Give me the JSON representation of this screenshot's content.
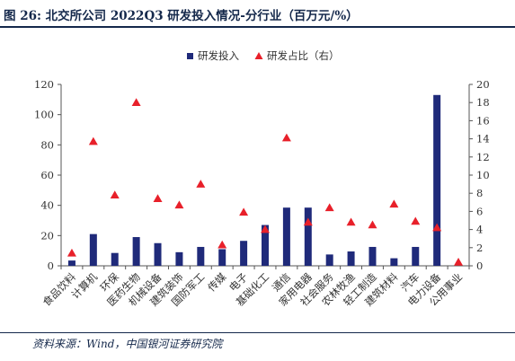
{
  "title": "图 26:  北交所公司 2022Q3 研发投入情况-分行业（百万元/%）",
  "source": "资料来源：Wind，中国银河证券研究院",
  "colors": {
    "bar": "#1f2a7a",
    "marker": "#e8202a",
    "axis": "#555555",
    "text": "#333333",
    "title": "#14284b"
  },
  "chart_data": {
    "type": "bar",
    "categories": [
      "食品饮料",
      "计算机",
      "环保",
      "医药生物",
      "机械设备",
      "建筑装饰",
      "国防军工",
      "传媒",
      "电子",
      "基础化工",
      "通信",
      "家用电器",
      "社会服务",
      "农林牧渔",
      "轻工制造",
      "建筑材料",
      "汽车",
      "电力设备",
      "公用事业"
    ],
    "series": [
      {
        "name": "研发投入",
        "type": "bar",
        "axis": "left",
        "values": [
          3.5,
          21,
          8.5,
          19,
          15,
          9,
          12.5,
          11,
          16.5,
          27,
          38.5,
          38.5,
          7.5,
          9.5,
          12.5,
          5,
          12.5,
          113,
          0
        ]
      },
      {
        "name": "研发占比（右）",
        "type": "scatter",
        "marker": "triangle",
        "axis": "right",
        "values": [
          1.4,
          13.7,
          7.8,
          18,
          7.4,
          6.7,
          9,
          2.3,
          5.9,
          4,
          14.1,
          4.8,
          6.4,
          4.8,
          4.5,
          6.8,
          4.9,
          4.2,
          0.4
        ]
      }
    ],
    "yleft": {
      "ylim": [
        0,
        120
      ],
      "ticks": [
        0,
        20,
        40,
        60,
        80,
        100,
        120
      ]
    },
    "yright": {
      "ylim": [
        0,
        20
      ],
      "ticks": [
        0,
        2,
        4,
        6,
        8,
        10,
        12,
        14,
        16,
        18,
        20
      ]
    },
    "legend_position": "top-center",
    "grid": false
  }
}
